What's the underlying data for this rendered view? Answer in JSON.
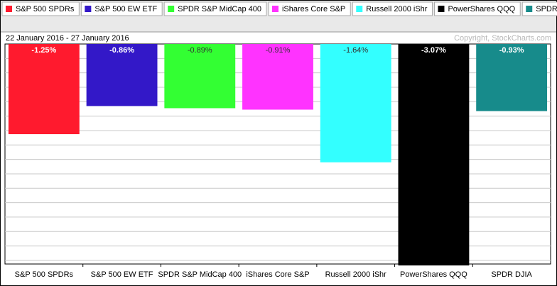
{
  "chart_data": {
    "type": "bar",
    "subtitle": "22 January 2016 - 27 January 2016",
    "annotation": "Copyright, StockCharts.com",
    "categories": [
      "S&P 500 SPDRs",
      "S&P 500 EW ETF",
      "SPDR S&P MidCap 400",
      "iShares Core S&P",
      "Russell 2000 iShr",
      "PowerShares QQQ",
      "SPDR DJIA"
    ],
    "values": [
      -1.25,
      -0.86,
      -0.89,
      -0.91,
      -1.64,
      -3.07,
      -0.93
    ],
    "value_labels": [
      "-1.25%",
      "-0.86%",
      "-0.89%",
      "-0.91%",
      "-1.64%",
      "-3.07%",
      "-0.93%"
    ],
    "colors": [
      "#ff1a2e",
      "#3318c8",
      "#33ff33",
      "#ff33ff",
      "#33ffff",
      "#000000",
      "#178b8b"
    ],
    "ylim": [
      -3.05,
      0
    ],
    "yticks": [
      -3,
      -2.8,
      -2.6,
      -2.4,
      -2.2,
      -2,
      -1.8,
      -1.6,
      -1.4,
      -1.2,
      -1,
      -0.8,
      -0.6,
      -0.4,
      -0.2
    ],
    "grid": true
  }
}
